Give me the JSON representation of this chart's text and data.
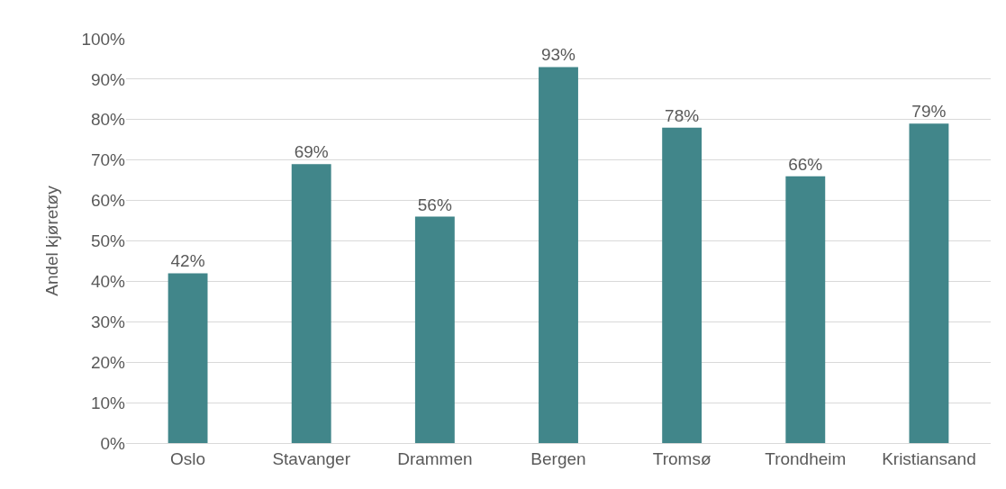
{
  "chart_data": {
    "type": "bar",
    "ylabel": "Andel kjøretøy",
    "categories": [
      "Oslo",
      "Stavanger",
      "Drammen",
      "Bergen",
      "Tromsø",
      "Trondheim",
      "Kristiansand"
    ],
    "values": [
      42,
      69,
      56,
      93,
      78,
      66,
      79
    ],
    "value_labels": [
      "42%",
      "69%",
      "56%",
      "93%",
      "78%",
      "66%",
      "79%"
    ],
    "color": "#41868a",
    "ylim": [
      0,
      100
    ],
    "yticks": [
      {
        "value": 0,
        "label": "0%"
      },
      {
        "value": 10,
        "label": "10%"
      },
      {
        "value": 20,
        "label": "20%"
      },
      {
        "value": 30,
        "label": "30%"
      },
      {
        "value": 40,
        "label": "40%"
      },
      {
        "value": 50,
        "label": "50%"
      },
      {
        "value": 60,
        "label": "60%"
      },
      {
        "value": 70,
        "label": "70%"
      },
      {
        "value": 80,
        "label": "80%"
      },
      {
        "value": 90,
        "label": "90%"
      },
      {
        "value": 100,
        "label": "100%"
      }
    ],
    "grid": "y",
    "legend": false
  }
}
